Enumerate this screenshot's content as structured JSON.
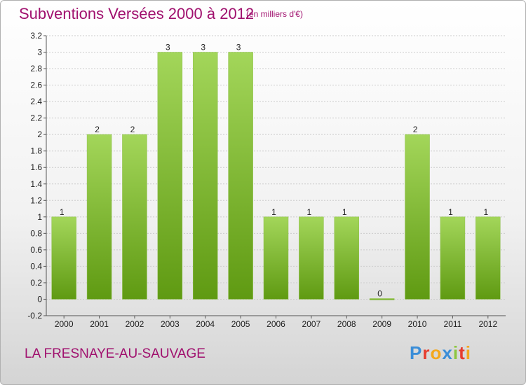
{
  "header": {
    "title": "Subventions Versées 2000 à 2012",
    "unit": "(en milliers d'€)"
  },
  "footer": {
    "commune": "LA FRESNAYE-AU-SAUVAGE",
    "logo_letters": [
      {
        "ch": "P",
        "color": "#3b8ed8"
      },
      {
        "ch": "r",
        "color": "#e63c2e"
      },
      {
        "ch": "o",
        "color": "#f4a81d"
      },
      {
        "ch": "x",
        "color": "#3b8ed8"
      },
      {
        "ch": "i",
        "color": "#8cc63f"
      },
      {
        "ch": "t",
        "color": "#e63c2e"
      },
      {
        "ch": "i",
        "color": "#f4a81d"
      }
    ]
  },
  "colors": {
    "title": "#a0106e",
    "bar_light": "#a3d65a",
    "bar_dark": "#5f9a12",
    "grid": "#cccccc"
  },
  "chart_data": {
    "type": "bar",
    "title": "Subventions Versées 2000 à 2012",
    "xlabel": "",
    "ylabel": "",
    "categories": [
      "2000",
      "2001",
      "2002",
      "2003",
      "2004",
      "2005",
      "2006",
      "2007",
      "2008",
      "2009",
      "2010",
      "2011",
      "2012"
    ],
    "values": [
      1,
      2,
      2,
      3,
      3,
      3,
      1,
      1,
      1,
      0,
      2,
      1,
      1
    ],
    "value_labels": [
      "1",
      "2",
      "2",
      "3",
      "3",
      "3",
      "1",
      "1",
      "1",
      "0",
      "2",
      "1",
      "1"
    ],
    "ylim": [
      -0.2,
      3.2
    ],
    "yticks": [
      -0.2,
      0,
      0.2,
      0.4,
      0.6,
      0.8,
      1,
      1.2,
      1.4,
      1.6,
      1.8,
      2,
      2.2,
      2.4,
      2.6,
      2.8,
      3,
      3.2
    ],
    "ytick_labels": [
      "-0.2",
      "0",
      "0.2",
      "0.4",
      "0.6",
      "0.8",
      "1",
      "1.2",
      "1.4",
      "1.6",
      "1.8",
      "2",
      "2.2",
      "2.4",
      "2.6",
      "2.8",
      "3",
      "3.2"
    ],
    "grid": true,
    "legend": "none"
  }
}
